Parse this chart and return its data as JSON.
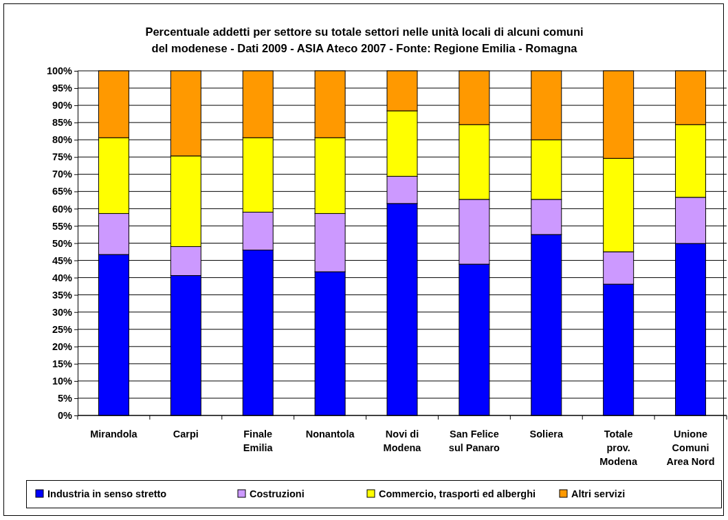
{
  "chart_data": {
    "type": "bar",
    "stacked": true,
    "title": "Percentuale addetti per settore su totale settori nelle unità locali di alcuni comuni\ndel modenese - Dati 2009 - ASIA Ateco 2007 - Fonte: Regione Emilia - Romagna",
    "categories": [
      "Mirandola",
      "Carpi",
      "Finale\nEmilia",
      "Nonantola",
      "Novi di\nModena",
      "San Felice\nsul Panaro",
      "Soliera",
      "Totale\nprov.\nModena",
      "Unione\nComuni\nArea Nord"
    ],
    "series": [
      {
        "name": "Industria in senso stretto",
        "color": "#0000ff",
        "values": [
          46.7,
          40.6,
          48.0,
          41.7,
          61.5,
          43.9,
          52.5,
          38.1,
          49.9
        ]
      },
      {
        "name": "Costruzioni",
        "color": "#cc99ff",
        "values": [
          11.9,
          8.4,
          11.0,
          16.9,
          7.9,
          18.8,
          10.2,
          9.4,
          13.4
        ]
      },
      {
        "name": "Commercio, trasporti ed alberghi",
        "color": "#ffff00",
        "values": [
          22.0,
          26.3,
          21.6,
          22.0,
          19.0,
          21.7,
          17.3,
          27.1,
          21.1
        ]
      },
      {
        "name": "Altri servizi",
        "color": "#ff9900",
        "values": [
          19.4,
          24.7,
          19.4,
          19.4,
          11.6,
          15.6,
          20.0,
          25.4,
          15.6
        ]
      }
    ],
    "ylim": [
      0,
      100
    ],
    "yticks": [
      {
        "value": 0,
        "label": "0%"
      },
      {
        "value": 5,
        "label": "5%"
      },
      {
        "value": 10,
        "label": "10%"
      },
      {
        "value": 15,
        "label": "15%"
      },
      {
        "value": 20,
        "label": "20%"
      },
      {
        "value": 25,
        "label": "25%"
      },
      {
        "value": 30,
        "label": "30%"
      },
      {
        "value": 35,
        "label": "35%"
      },
      {
        "value": 40,
        "label": "40%"
      },
      {
        "value": 45,
        "label": "45%"
      },
      {
        "value": 50,
        "label": "50%"
      },
      {
        "value": 55,
        "label": "55%"
      },
      {
        "value": 60,
        "label": "60%"
      },
      {
        "value": 65,
        "label": "65%"
      },
      {
        "value": 70,
        "label": "70%"
      },
      {
        "value": 75,
        "label": "75%"
      },
      {
        "value": 80,
        "label": "80%"
      },
      {
        "value": 85,
        "label": "85%"
      },
      {
        "value": 90,
        "label": "90%"
      },
      {
        "value": 95,
        "label": "95%"
      },
      {
        "value": 100,
        "label": "100%"
      }
    ],
    "grid": "y",
    "legend": "bottom"
  }
}
